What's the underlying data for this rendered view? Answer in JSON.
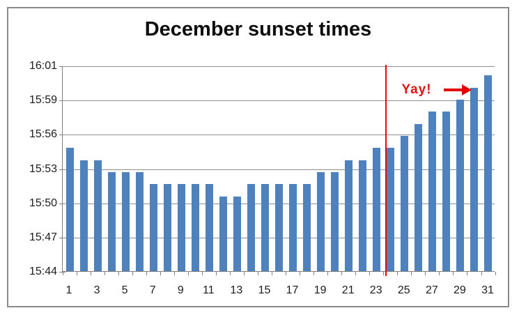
{
  "window": {
    "background": "#ffffff",
    "frame_border_color": "#8a8a8a"
  },
  "chart": {
    "title": "December sunset times",
    "annotation": {
      "text": "Yay!"
    },
    "colors": {
      "bar": "#4F81BD",
      "red_line": "#FF0000",
      "annotation_text": "#DD1414",
      "arrow": "#E60000",
      "gridline": "#8F8F8F",
      "axis": "#7F7F7F",
      "tick_label": "#1C1C1C",
      "title_text": "#0D0D0D"
    }
  },
  "chart_data": {
    "type": "bar",
    "title": "December sunset times",
    "xlabel": "",
    "ylabel": "",
    "grid": true,
    "bar_color": "#4F81BD",
    "ylim": [
      "15:44",
      "16:01"
    ],
    "y_tick_labels": [
      "16:01",
      "15:59",
      "15:56",
      "15:53",
      "15:50",
      "15:47",
      "15:44"
    ],
    "x_tick_labels": [
      "1",
      "3",
      "5",
      "7",
      "9",
      "11",
      "13",
      "15",
      "17",
      "19",
      "21",
      "23",
      "25",
      "27",
      "29",
      "31"
    ],
    "x": [
      1,
      2,
      3,
      4,
      5,
      6,
      7,
      8,
      9,
      10,
      11,
      12,
      13,
      14,
      15,
      16,
      17,
      18,
      19,
      20,
      21,
      22,
      23,
      24,
      25,
      26,
      27,
      28,
      29,
      30,
      31
    ],
    "values": [
      "15:55",
      "15:54",
      "15:54",
      "15:53",
      "15:53",
      "15:53",
      "15:52",
      "15:52",
      "15:52",
      "15:52",
      "15:52",
      "15:51",
      "15:51",
      "15:52",
      "15:52",
      "15:52",
      "15:52",
      "15:52",
      "15:53",
      "15:53",
      "15:54",
      "15:54",
      "15:55",
      "15:55",
      "15:56",
      "15:57",
      "15:58",
      "15:58",
      "15:59",
      "16:00",
      "16:01"
    ],
    "annotations": [
      {
        "type": "vline",
        "x": 23.7,
        "color": "#FF0000"
      },
      {
        "type": "text",
        "text": "Yay!",
        "x": 25.9,
        "y": "16:00",
        "color": "#DD1414"
      },
      {
        "type": "arrow",
        "direction": "right",
        "x_from": 27.8,
        "x_to": 29.8,
        "y": "16:00",
        "color": "#E60000"
      }
    ]
  }
}
